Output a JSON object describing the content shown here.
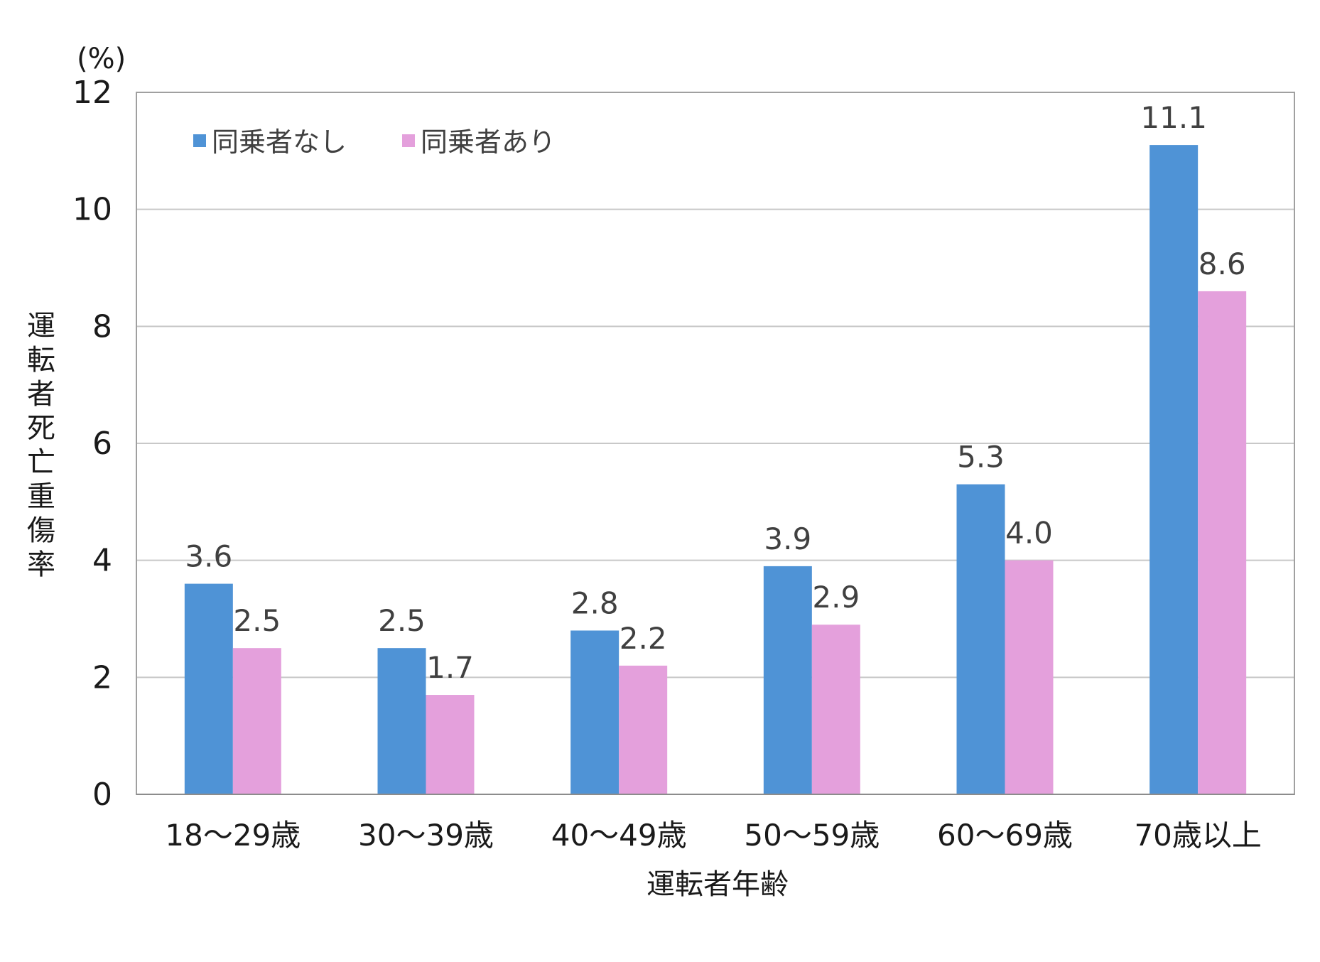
{
  "chart_data": {
    "type": "bar",
    "unit_label": "(%)",
    "xlabel": "運転者年齢",
    "ylabel": "運転者死亡重傷率",
    "categories": [
      "18～29歳",
      "30～39歳",
      "40～49歳",
      "50～59歳",
      "60～69歳",
      "70歳以上"
    ],
    "series": [
      {
        "name": "同乗者なし",
        "color": "#4f93d6",
        "values": [
          3.6,
          2.5,
          2.8,
          3.9,
          5.3,
          11.1
        ],
        "labels": [
          "3.6",
          "2.5",
          "2.8",
          "3.9",
          "5.3",
          "11.1"
        ]
      },
      {
        "name": "同乗者あり",
        "color": "#e4a0dc",
        "values": [
          2.5,
          1.7,
          2.2,
          2.9,
          4.0,
          8.6
        ],
        "labels": [
          "2.5",
          "1.7",
          "2.2",
          "2.9",
          "4.0",
          "8.6"
        ]
      }
    ],
    "ylim": [
      0,
      12
    ],
    "yticks": [
      0,
      2,
      4,
      6,
      8,
      10,
      12
    ],
    "grid": true,
    "legend": "top-left"
  }
}
